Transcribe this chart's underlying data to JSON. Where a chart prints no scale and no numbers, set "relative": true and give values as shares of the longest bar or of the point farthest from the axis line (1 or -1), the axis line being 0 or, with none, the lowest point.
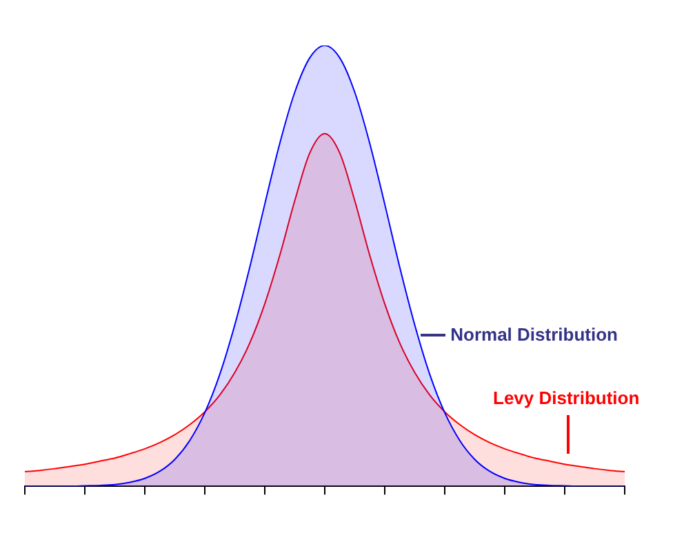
{
  "chart_data": {
    "type": "area",
    "relative": true,
    "legend": false,
    "grid": false,
    "marker": "none",
    "categories": [
      null,
      null,
      null,
      null,
      null,
      null,
      null,
      null,
      null,
      null,
      null,
      null,
      null,
      null,
      null,
      null,
      null,
      null,
      null,
      null,
      null,
      null,
      null,
      null,
      null,
      null,
      null,
      null,
      null,
      null,
      null,
      null,
      null,
      null,
      null,
      null,
      null,
      null,
      null,
      null,
      null
    ],
    "series": [
      {
        "name": "Normal Distribution",
        "color": "#0000ff",
        "values": [
          0,
          0,
          0,
          0,
          0.001,
          0.002,
          0.004,
          0.009,
          0.018,
          0.034,
          0.061,
          0.104,
          0.167,
          0.254,
          0.366,
          0.497,
          0.64,
          0.778,
          0.894,
          0.972,
          1,
          0.972,
          0.894,
          0.778,
          0.64,
          0.497,
          0.366,
          0.254,
          0.167,
          0.104,
          0.061,
          0.034,
          0.018,
          0.009,
          0.004,
          0.002,
          0.001,
          0,
          0,
          0,
          0
        ]
      },
      {
        "name": "Levy Distribution",
        "color": "#ff0000",
        "values": [
          0.033,
          0.036,
          0.04,
          0.045,
          0.05,
          0.057,
          0.064,
          0.074,
          0.085,
          0.099,
          0.117,
          0.14,
          0.169,
          0.207,
          0.258,
          0.325,
          0.414,
          0.524,
          0.648,
          0.756,
          0.8,
          0.756,
          0.648,
          0.524,
          0.414,
          0.325,
          0.258,
          0.207,
          0.169,
          0.14,
          0.117,
          0.099,
          0.085,
          0.074,
          0.064,
          0.057,
          0.05,
          0.045,
          0.04,
          0.036,
          0.033
        ]
      }
    ]
  }
}
